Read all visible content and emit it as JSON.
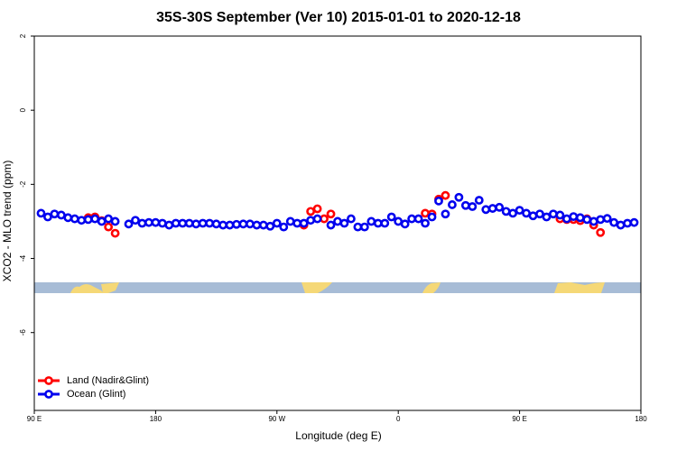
{
  "chart_data": {
    "type": "scatter",
    "title": "35S-30S September (Ver 10)   2015-01-01 to 2020-12-18",
    "x_label": "Longitude (deg E)",
    "y_label": "XCO2 - MLO trend (ppm)",
    "xlim": [
      90,
      540
    ],
    "ylim": [
      -8.1,
      2
    ],
    "xticks": [
      {
        "value": 90,
        "label": "90 E"
      },
      {
        "value": 180,
        "label": "180"
      },
      {
        "value": 270,
        "label": "90 W"
      },
      {
        "value": 360,
        "label": "0"
      },
      {
        "value": 450,
        "label": "90 E"
      },
      {
        "value": 540,
        "label": "180"
      }
    ],
    "yticks": [
      2,
      0,
      -2,
      -4,
      -6
    ],
    "legend": "bottom-left",
    "series": [
      {
        "name": "Land (Nadir&Glint)",
        "color": "#ff0000",
        "x": [
          130,
          135,
          140,
          145,
          150,
          290,
          295,
          300,
          305,
          310,
          380,
          385,
          390,
          395,
          480,
          485,
          490,
          495,
          500,
          505,
          510
        ],
        "values": [
          -2.9,
          -2.88,
          -2.98,
          -3.15,
          -3.32,
          -3.1,
          -2.73,
          -2.66,
          -2.93,
          -2.8,
          -2.78,
          -2.8,
          -2.4,
          -2.3,
          -2.93,
          -2.95,
          -2.95,
          -2.98,
          -2.93,
          -3.1,
          -3.3
        ]
      },
      {
        "name": "Ocean (Glint)",
        "color": "#0000ee",
        "x": [
          95,
          100,
          105,
          110,
          115,
          120,
          125,
          130,
          135,
          140,
          145,
          150,
          155,
          160,
          165,
          170,
          175,
          180,
          185,
          190,
          195,
          200,
          205,
          210,
          215,
          220,
          225,
          230,
          235,
          240,
          245,
          250,
          255,
          260,
          265,
          270,
          275,
          280,
          285,
          290,
          295,
          300,
          305,
          310,
          315,
          320,
          325,
          330,
          335,
          340,
          345,
          350,
          355,
          360,
          365,
          370,
          375,
          380,
          385,
          390,
          395,
          400,
          405,
          410,
          415,
          420,
          425,
          430,
          435,
          440,
          445,
          450,
          455,
          460,
          465,
          470,
          475,
          480,
          485,
          490,
          495,
          500,
          505,
          510,
          515,
          520,
          525,
          530,
          535
        ],
        "values": [
          -2.78,
          -2.88,
          -2.8,
          -2.83,
          -2.9,
          -2.93,
          -2.97,
          -2.95,
          -2.93,
          -3.0,
          -2.93,
          -3.0,
          null,
          -3.07,
          -2.97,
          -3.05,
          -3.03,
          -3.03,
          -3.05,
          -3.1,
          -3.05,
          -3.05,
          -3.05,
          -3.07,
          -3.05,
          -3.05,
          -3.07,
          -3.1,
          -3.1,
          -3.08,
          -3.07,
          -3.07,
          -3.1,
          -3.1,
          -3.13,
          -3.05,
          -3.15,
          -3.0,
          -3.05,
          -3.05,
          -2.97,
          -2.93,
          null,
          -3.1,
          -3.0,
          -3.05,
          -2.93,
          -3.15,
          -3.15,
          -3.0,
          -3.05,
          -3.05,
          -2.88,
          -3.0,
          -3.07,
          -2.93,
          -2.93,
          -3.05,
          -2.88,
          -2.45,
          -2.8,
          -2.55,
          -2.35,
          -2.57,
          -2.6,
          -2.43,
          -2.68,
          -2.65,
          -2.62,
          -2.73,
          -2.78,
          -2.7,
          -2.78,
          -2.85,
          -2.8,
          -2.88,
          -2.8,
          -2.83,
          -2.93,
          -2.87,
          -2.9,
          -2.95,
          -3.0,
          -2.95,
          -2.92,
          -3.03,
          -3.1,
          -3.05,
          -3.03
        ]
      }
    ]
  }
}
